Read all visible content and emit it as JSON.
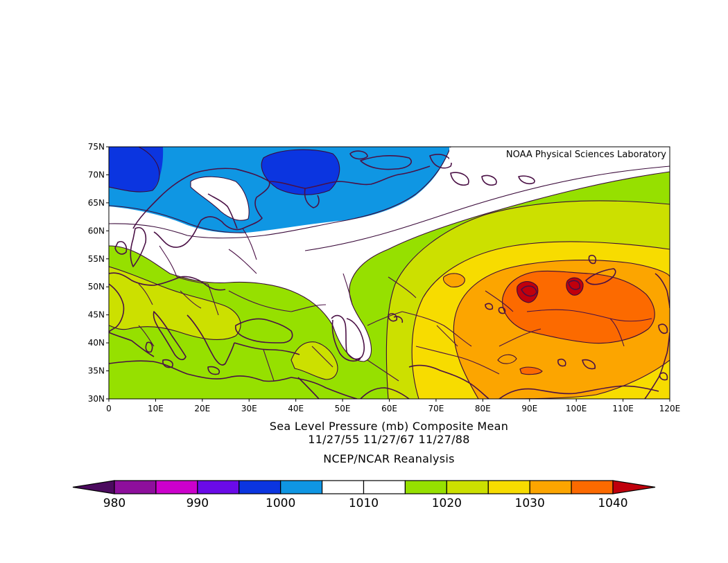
{
  "credit": "NOAA Physical Sciences Laboratory",
  "title_line1": "Sea Level Pressure (mb) Composite Mean",
  "title_line2": "11/27/55 11/27/67 11/27/88",
  "source": "NCEP/NCAR Reanalysis",
  "map": {
    "lon_range": [
      0,
      120
    ],
    "lat_range": [
      30,
      75
    ],
    "lon_ticks": [
      "0",
      "10E",
      "20E",
      "30E",
      "40E",
      "50E",
      "60E",
      "70E",
      "80E",
      "90E",
      "100E",
      "110E",
      "120E"
    ],
    "lat_ticks": [
      "30N",
      "35N",
      "40N",
      "45N",
      "50N",
      "55N",
      "60N",
      "65N",
      "70N",
      "75N"
    ]
  },
  "colorbar": {
    "units": "mb",
    "low_color": "#4b0a5e",
    "high_color": "#c0000c",
    "levels": [
      980,
      985,
      990,
      995,
      1000,
      1005,
      1010,
      1015,
      1020,
      1025,
      1030,
      1035,
      1040
    ],
    "colors": [
      "#8e0f9c",
      "#cc00cc",
      "#6a0ae8",
      "#0b35e0",
      "#0f96e3",
      "#ffffff",
      "#ffffff",
      "#96e000",
      "#cce000",
      "#f7dc00",
      "#fca500",
      "#fc6a00"
    ],
    "labels": [
      "980",
      "990",
      "1000",
      "1010",
      "1020",
      "1030",
      "1040"
    ]
  },
  "colors": {
    "coast": "#4a1045",
    "contour": "#3a0a3a"
  }
}
